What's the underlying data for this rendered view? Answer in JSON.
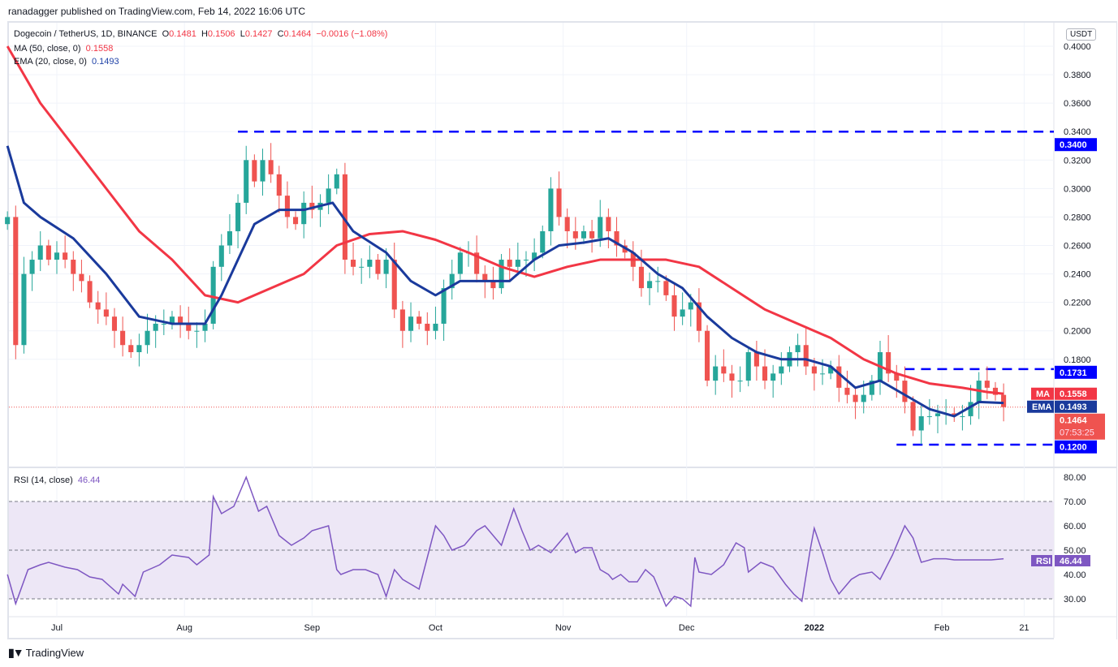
{
  "published": "ranadagger published on TradingView.com, Feb 14, 2022 16:06 UTC",
  "legend": {
    "symbol": "Dogecoin / TetherUS, 1D, BINANCE",
    "o_label": "O",
    "o": "0.1481",
    "h_label": "H",
    "h": "0.1506",
    "l_label": "L",
    "l": "0.1427",
    "c_label": "C",
    "c": "0.1464",
    "change": "−0.0016 (−1.08%)",
    "ma_label": "MA (50, close, 0)",
    "ma_value": "0.1558",
    "ema_label": "EMA (20, close, 0)",
    "ema_value": "0.1493",
    "rsi_label": "RSI (14, close)",
    "rsi_value": "46.44"
  },
  "currency": "USDT",
  "footer": {
    "brand": "TradingView",
    "logo_text": "17"
  },
  "colors": {
    "up": "#26a69a",
    "down": "#ef5350",
    "ma": "#f23645",
    "ema": "#1a3a9c",
    "level": "#0000ff",
    "rsi": "#7e57c2",
    "rsi_band": "#ede7f6"
  },
  "chart_data": {
    "type": "candlestick",
    "title": "Dogecoin / TetherUS, 1D, BINANCE",
    "x_tick_labels": [
      "Jul",
      "Aug",
      "Sep",
      "Oct",
      "Nov",
      "Dec",
      "2022",
      "Feb",
      "21"
    ],
    "y_tick_labels": [
      "0.4000",
      "0.3800",
      "0.3600",
      "0.3400",
      "0.3200",
      "0.3000",
      "0.2800",
      "0.2600",
      "0.2400",
      "0.2200",
      "0.2000",
      "0.1800"
    ],
    "ylim": [
      0.11,
      0.41
    ],
    "start_day_offset": -12,
    "step_days": 2,
    "closes": [
      0.28,
      0.19,
      0.24,
      0.25,
      0.26,
      0.25,
      0.255,
      0.25,
      0.24,
      0.235,
      0.22,
      0.215,
      0.21,
      0.2,
      0.19,
      0.185,
      0.19,
      0.2,
      0.205,
      0.205,
      0.21,
      0.205,
      0.2,
      0.2,
      0.205,
      0.245,
      0.26,
      0.27,
      0.29,
      0.32,
      0.305,
      0.32,
      0.31,
      0.295,
      0.28,
      0.275,
      0.29,
      0.285,
      0.29,
      0.3,
      0.31,
      0.25,
      0.245,
      0.245,
      0.25,
      0.24,
      0.25,
      0.215,
      0.2,
      0.21,
      0.205,
      0.2,
      0.205,
      0.23,
      0.24,
      0.255,
      0.255,
      0.24,
      0.235,
      0.23,
      0.25,
      0.245,
      0.25,
      0.25,
      0.255,
      0.27,
      0.3,
      0.28,
      0.27,
      0.265,
      0.27,
      0.265,
      0.28,
      0.27,
      0.26,
      0.255,
      0.245,
      0.23,
      0.235,
      0.235,
      0.225,
      0.21,
      0.215,
      0.22,
      0.2,
      0.165,
      0.175,
      0.17,
      0.165,
      0.165,
      0.185,
      0.175,
      0.165,
      0.17,
      0.175,
      0.185,
      0.19,
      0.175,
      0.17,
      0.17,
      0.175,
      0.16,
      0.155,
      0.15,
      0.155,
      0.165,
      0.185,
      0.17,
      0.165,
      0.15,
      0.13,
      0.14,
      0.14,
      0.142,
      0.142,
      0.14,
      0.14,
      0.15,
      0.165,
      0.16,
      0.155,
      0.1464
    ],
    "ma50": {
      "name": "MA",
      "day_offsets": [
        -12,
        -4,
        4,
        12,
        20,
        28,
        36,
        44,
        52,
        60,
        68,
        76,
        84,
        92,
        100,
        108,
        116,
        124,
        132,
        140,
        148,
        156,
        164,
        172,
        180,
        188,
        196,
        204,
        212,
        220,
        226,
        230
      ],
      "values": [
        0.4,
        0.36,
        0.33,
        0.3,
        0.27,
        0.25,
        0.225,
        0.22,
        0.23,
        0.24,
        0.26,
        0.268,
        0.27,
        0.264,
        0.255,
        0.245,
        0.238,
        0.245,
        0.25,
        0.25,
        0.25,
        0.245,
        0.23,
        0.215,
        0.205,
        0.195,
        0.18,
        0.17,
        0.163,
        0.16,
        0.157,
        0.1558
      ],
      "last_label": "0.1558"
    },
    "ema20": {
      "name": "EMA",
      "day_offsets": [
        -12,
        -8,
        -4,
        4,
        12,
        20,
        28,
        36,
        40,
        44,
        48,
        54,
        60,
        67,
        72,
        80,
        86,
        92,
        98,
        104,
        110,
        116,
        122,
        128,
        134,
        140,
        146,
        152,
        158,
        164,
        170,
        176,
        182,
        188,
        194,
        200,
        206,
        212,
        218,
        224,
        230
      ],
      "values": [
        0.33,
        0.29,
        0.28,
        0.265,
        0.24,
        0.21,
        0.205,
        0.205,
        0.225,
        0.25,
        0.275,
        0.285,
        0.285,
        0.29,
        0.27,
        0.255,
        0.235,
        0.225,
        0.235,
        0.235,
        0.235,
        0.25,
        0.26,
        0.262,
        0.265,
        0.255,
        0.24,
        0.23,
        0.21,
        0.195,
        0.185,
        0.18,
        0.18,
        0.175,
        0.16,
        0.165,
        0.155,
        0.145,
        0.14,
        0.15,
        0.1493
      ],
      "last_label": "0.1493"
    },
    "levels": [
      {
        "value": 0.34,
        "label": "0.3400",
        "from_day": 44
      },
      {
        "value": 0.1731,
        "label": "0.1731",
        "from_day": 206
      },
      {
        "value": 0.12,
        "label": "0.1200",
        "from_day": 204
      }
    ],
    "last_price": {
      "label": "0.1464",
      "countdown": "07:53:25"
    },
    "rsi": {
      "name": "RSI",
      "period": 14,
      "ylim": [
        22,
        85
      ],
      "bands": [
        30,
        50,
        70
      ],
      "y_tick_labels": [
        "80.00",
        "70.00",
        "60.00",
        "50.00",
        "40.00",
        "30.00"
      ],
      "day_offsets": [
        -12,
        -10,
        -7,
        -4,
        -2,
        2,
        5,
        8,
        11,
        15,
        16,
        19,
        21,
        25,
        28,
        32,
        34,
        37,
        38,
        40,
        43,
        46,
        49,
        51,
        54,
        57,
        60,
        62,
        66,
        68,
        69,
        72,
        75,
        78,
        80,
        82,
        84,
        86,
        88,
        90,
        92,
        94,
        96,
        99,
        102,
        104,
        108,
        111,
        113,
        115,
        117,
        120,
        124,
        126,
        128,
        130,
        132,
        134,
        135,
        137,
        139,
        141,
        143,
        145,
        146,
        148,
        150,
        152,
        154,
        155,
        156,
        159,
        162,
        165,
        167,
        168,
        171,
        174,
        177,
        179,
        181,
        183,
        184,
        186,
        188,
        190,
        193,
        195,
        198,
        200,
        203,
        206,
        208,
        210,
        213,
        216,
        218,
        221,
        223,
        225,
        227,
        230
      ],
      "values": [
        40,
        28,
        42,
        44,
        45,
        43,
        42,
        39,
        38,
        32,
        36,
        31,
        41,
        44,
        48,
        47,
        44,
        48,
        72,
        65,
        68,
        80,
        66,
        68,
        56,
        52,
        55,
        58,
        60,
        42,
        40,
        42,
        42,
        40,
        31,
        42,
        38,
        36,
        34,
        47,
        60,
        56,
        50,
        52,
        58,
        60,
        52,
        67,
        58,
        50,
        52,
        49,
        57,
        49,
        51,
        51,
        42,
        40,
        38,
        40,
        37,
        37,
        42,
        39,
        35,
        27,
        31,
        30,
        27,
        47,
        41,
        40,
        44,
        53,
        51,
        41,
        45,
        43,
        36,
        32,
        29,
        50,
        59,
        49,
        38,
        32,
        38,
        40,
        41,
        38,
        48,
        60,
        55,
        45,
        46.44,
        46.44,
        46,
        46,
        46,
        46,
        46,
        46.44
      ],
      "last_label": "46.44"
    }
  }
}
